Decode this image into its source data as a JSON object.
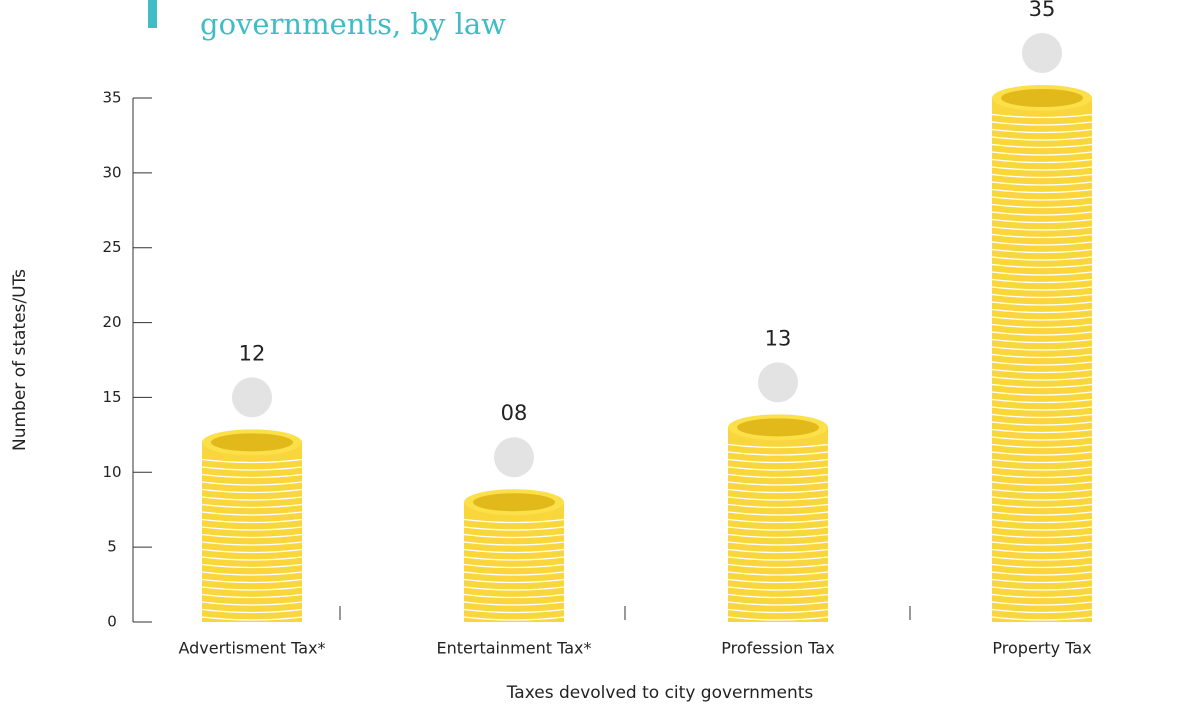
{
  "chart_data": {
    "type": "bar",
    "title": "governments, by law",
    "x_label": "Taxes devolved to city governments",
    "y_label": "Number of states/UTs",
    "categories": [
      "Advertisment Tax*",
      "Entertainment Tax*",
      "Profession Tax",
      "Property Tax"
    ],
    "values": [
      12,
      8,
      13,
      35
    ],
    "value_labels": [
      "12",
      "08",
      "13",
      "35"
    ],
    "color": "#f8d63c",
    "ylim": [
      0,
      35
    ],
    "yticks": [
      0,
      5,
      10,
      15,
      20,
      25,
      30,
      35
    ]
  }
}
